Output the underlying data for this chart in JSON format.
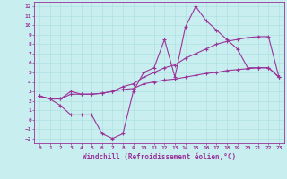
{
  "bg_color": "#c8eef0",
  "grid_color": "#aadddd",
  "line_color": "#993399",
  "xlabel": "Windchill (Refroidissement éolien,°C)",
  "xlim": [
    -0.5,
    23.5
  ],
  "ylim": [
    -2.5,
    12.5
  ],
  "xticks": [
    0,
    1,
    2,
    3,
    4,
    5,
    6,
    7,
    8,
    9,
    10,
    11,
    12,
    13,
    14,
    15,
    16,
    17,
    18,
    19,
    20,
    21,
    22,
    23
  ],
  "yticks": [
    -2,
    -1,
    0,
    1,
    2,
    3,
    4,
    5,
    6,
    7,
    8,
    9,
    10,
    11,
    12
  ],
  "line1_x": [
    0,
    1,
    2,
    3,
    4,
    5,
    6,
    7,
    8,
    9,
    10,
    11,
    12,
    13,
    14,
    15,
    16,
    17,
    18,
    19,
    20,
    21,
    22,
    23
  ],
  "line1_y": [
    2.5,
    2.2,
    2.2,
    3.0,
    2.7,
    2.7,
    2.8,
    3.0,
    3.2,
    3.3,
    3.8,
    4.0,
    4.2,
    4.3,
    4.5,
    4.7,
    4.9,
    5.0,
    5.2,
    5.3,
    5.4,
    5.5,
    5.5,
    4.5
  ],
  "line2_x": [
    0,
    1,
    2,
    3,
    4,
    5,
    6,
    7,
    8,
    9,
    10,
    11,
    12,
    13,
    14,
    15,
    16,
    17,
    18,
    19,
    20,
    21,
    22,
    23
  ],
  "line2_y": [
    2.5,
    2.2,
    2.2,
    2.7,
    2.7,
    2.7,
    2.8,
    3.0,
    3.5,
    3.8,
    4.5,
    5.0,
    5.5,
    5.8,
    6.5,
    7.0,
    7.5,
    8.0,
    8.3,
    8.5,
    8.7,
    8.8,
    8.8,
    4.5
  ],
  "line3_x": [
    0,
    1,
    2,
    3,
    4,
    5,
    6,
    7,
    8,
    9,
    10,
    11,
    12,
    13,
    14,
    15,
    16,
    17,
    18,
    19,
    20,
    21,
    22,
    23
  ],
  "line3_y": [
    2.5,
    2.2,
    1.5,
    0.5,
    0.5,
    0.5,
    -1.5,
    -2.0,
    -1.5,
    3.0,
    5.0,
    5.5,
    8.5,
    4.5,
    9.8,
    12.0,
    10.5,
    9.5,
    8.5,
    7.5,
    5.5,
    5.5,
    5.5,
    4.5
  ],
  "marker": "+",
  "markersize": 3,
  "linewidth": 0.8,
  "tick_fontsize": 4.5,
  "xlabel_fontsize": 5.5
}
